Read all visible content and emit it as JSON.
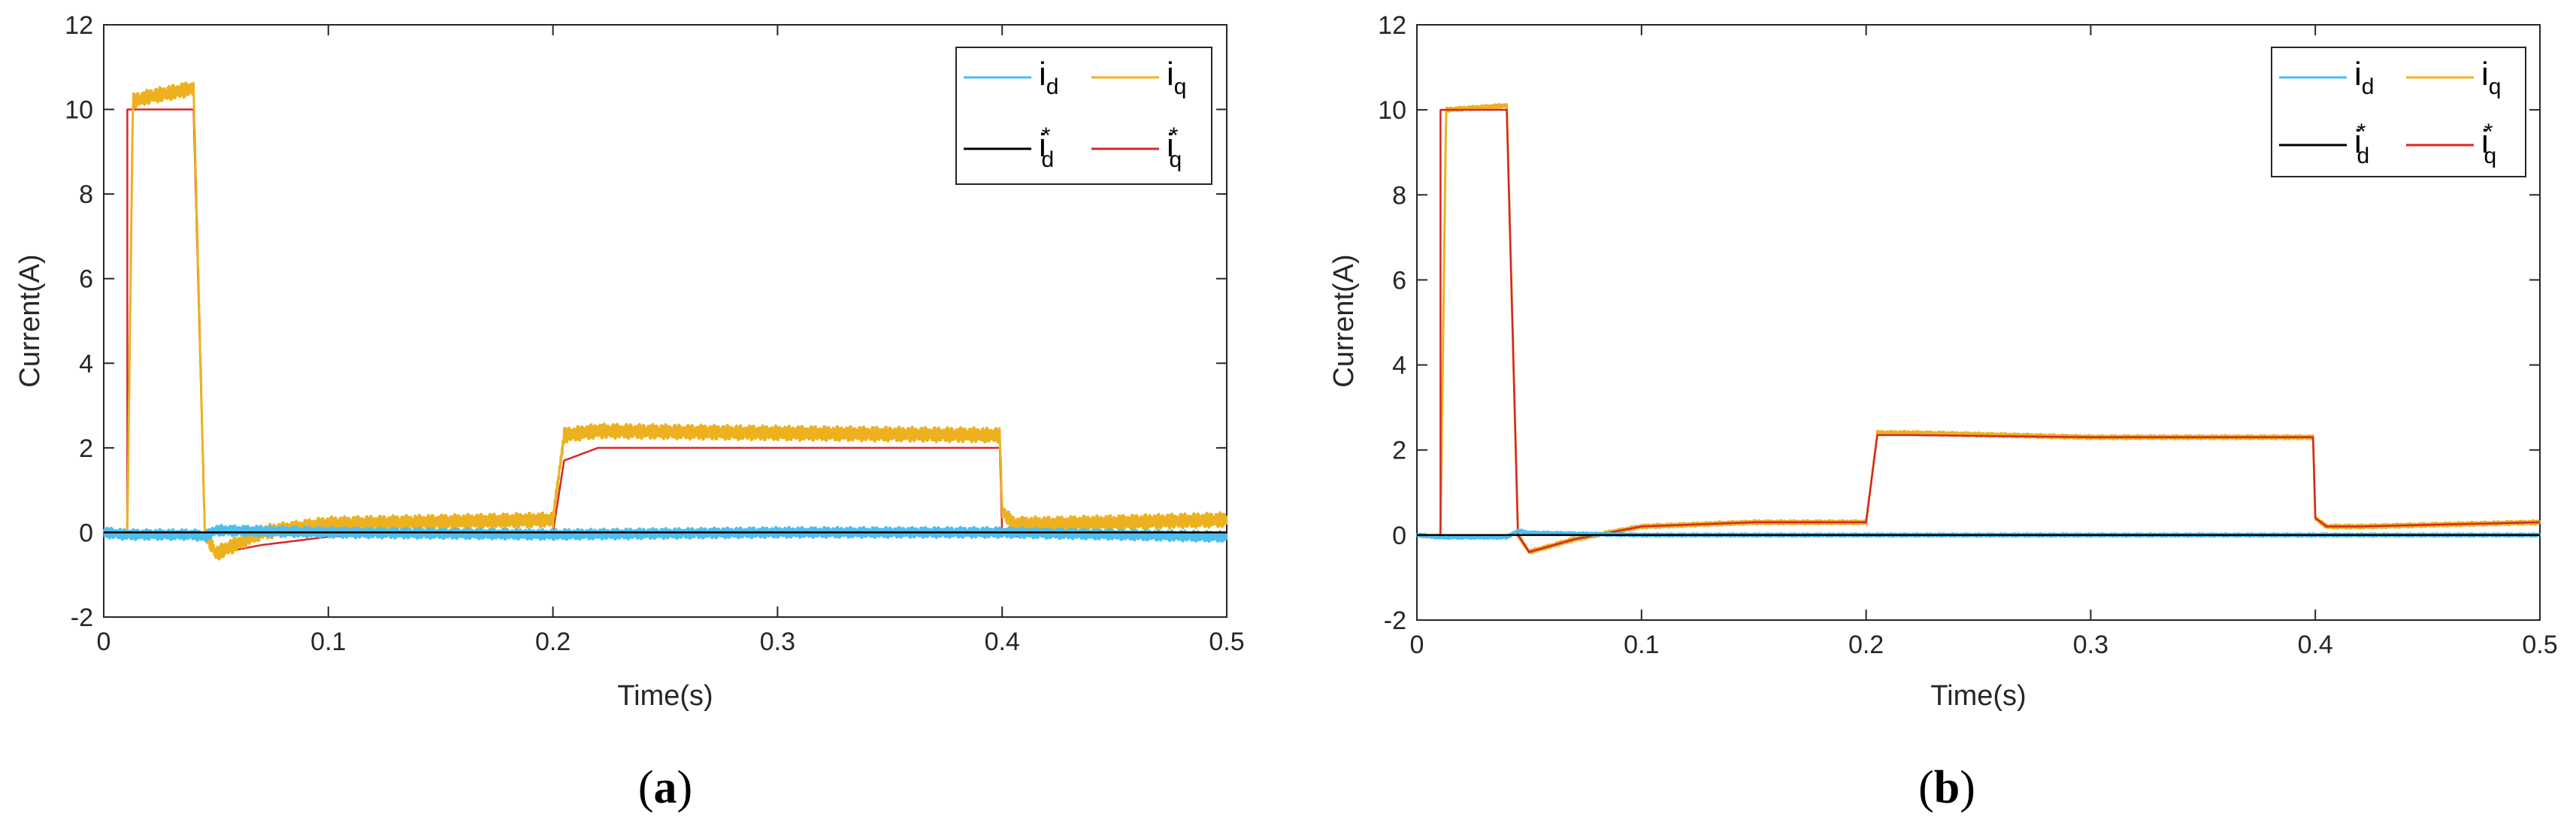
{
  "panels": [
    {
      "label_open": "(",
      "label_letter": "a",
      "label_close": ")"
    },
    {
      "label_open": "(",
      "label_letter": "b",
      "label_close": ")"
    }
  ],
  "colors": {
    "id": "#4DBEEE",
    "iq": "#EDB120",
    "id_ref": "#000000",
    "iq_ref": "#D62728",
    "axis": "#262626"
  },
  "chart_data": [
    {
      "type": "line",
      "panel": "a",
      "title": "",
      "xlabel": "Time(s)",
      "ylabel": "Current(A)",
      "xlim": [
        0,
        0.5
      ],
      "ylim": [
        -2,
        12
      ],
      "xticks": [
        "0",
        "0.1",
        "0.2",
        "0.3",
        "0.4",
        "0.5"
      ],
      "yticks": [
        "-2",
        "0",
        "2",
        "4",
        "6",
        "8",
        "10",
        "12"
      ],
      "legend": {
        "placement": "top-right",
        "entries": [
          {
            "key": "id",
            "base": "i",
            "sub": "d",
            "sup": ""
          },
          {
            "key": "iq",
            "base": "i",
            "sub": "q",
            "sup": ""
          },
          {
            "key": "id_ref",
            "base": "i",
            "sub": "d",
            "sup": "*"
          },
          {
            "key": "iq_ref",
            "base": "i",
            "sub": "q",
            "sup": "*"
          }
        ]
      },
      "series": [
        {
          "key": "iq_ref",
          "name": "iq*",
          "x": [
            0,
            0.0105,
            0.0105,
            0.04,
            0.045,
            0.05,
            0.07,
            0.1,
            0.15,
            0.199,
            0.2,
            0.205,
            0.22,
            0.3,
            0.399,
            0.4,
            0.405,
            0.42,
            0.5
          ],
          "values": [
            0,
            0,
            10,
            10,
            0,
            -0.5,
            -0.3,
            -0.1,
            0,
            0,
            0,
            1.7,
            2,
            2,
            2,
            0,
            -0.1,
            -0.05,
            0
          ]
        },
        {
          "key": "iq",
          "name": "iq",
          "x": [
            0,
            0.0105,
            0.013,
            0.02,
            0.04,
            0.045,
            0.05,
            0.07,
            0.1,
            0.15,
            0.199,
            0.2,
            0.205,
            0.22,
            0.3,
            0.399,
            0.4,
            0.405,
            0.42,
            0.5
          ],
          "values": [
            0,
            0,
            10.2,
            10.3,
            10.5,
            0,
            -0.5,
            0,
            0.2,
            0.25,
            0.3,
            0.3,
            2.3,
            2.4,
            2.35,
            2.3,
            0.5,
            0.2,
            0.2,
            0.3
          ],
          "ripple": 0.18
        },
        {
          "key": "id",
          "name": "id",
          "x": [
            0,
            0.01,
            0.04,
            0.045,
            0.05,
            0.1,
            0.2,
            0.3,
            0.4,
            0.45,
            0.5
          ],
          "values": [
            0,
            -0.05,
            -0.05,
            -0.1,
            0.05,
            0,
            -0.05,
            0,
            0,
            -0.05,
            -0.1
          ],
          "ripple": 0.13
        },
        {
          "key": "id_ref",
          "name": "id*",
          "x": [
            0,
            0.5
          ],
          "values": [
            0,
            0
          ]
        }
      ]
    },
    {
      "type": "line",
      "panel": "b",
      "title": "",
      "xlabel": "Time(s)",
      "ylabel": "Current(A)",
      "xlim": [
        0,
        0.5
      ],
      "ylim": [
        -2,
        12
      ],
      "xticks": [
        "0",
        "0.1",
        "0.2",
        "0.3",
        "0.4",
        "0.5"
      ],
      "yticks": [
        "-2",
        "0",
        "2",
        "4",
        "6",
        "8",
        "10",
        "12"
      ],
      "legend": {
        "placement": "top-right",
        "entries": [
          {
            "key": "id",
            "base": "i",
            "sub": "d",
            "sup": ""
          },
          {
            "key": "iq",
            "base": "i",
            "sub": "q",
            "sup": ""
          },
          {
            "key": "id_ref",
            "base": "i",
            "sub": "d",
            "sup": "*"
          },
          {
            "key": "iq_ref",
            "base": "i",
            "sub": "q",
            "sup": "*"
          }
        ]
      },
      "series": [
        {
          "key": "iq",
          "name": "iq",
          "x": [
            0,
            0.0105,
            0.013,
            0.04,
            0.045,
            0.05,
            0.07,
            0.1,
            0.15,
            0.199,
            0.2,
            0.205,
            0.22,
            0.3,
            0.399,
            0.4,
            0.405,
            0.42,
            0.5
          ],
          "values": [
            0,
            0,
            10,
            10.1,
            0,
            -0.4,
            -0.1,
            0.2,
            0.3,
            0.3,
            0.3,
            2.4,
            2.4,
            2.3,
            2.3,
            0.4,
            0.2,
            0.2,
            0.3
          ],
          "ripple": 0.05
        },
        {
          "key": "iq_ref",
          "name": "iq*",
          "x": [
            0,
            0.0105,
            0.0105,
            0.04,
            0.045,
            0.05,
            0.07,
            0.1,
            0.15,
            0.199,
            0.2,
            0.205,
            0.22,
            0.3,
            0.399,
            0.4,
            0.405,
            0.42,
            0.5
          ],
          "values": [
            0,
            0,
            10,
            10,
            0,
            -0.4,
            -0.1,
            0.2,
            0.3,
            0.3,
            0.3,
            2.35,
            2.35,
            2.3,
            2.3,
            0.4,
            0.2,
            0.2,
            0.3
          ]
        },
        {
          "key": "id",
          "name": "id",
          "x": [
            0,
            0.01,
            0.04,
            0.045,
            0.05,
            0.1,
            0.2,
            0.3,
            0.4,
            0.5
          ],
          "values": [
            0,
            -0.05,
            -0.05,
            0.1,
            0.05,
            0,
            0,
            0,
            0,
            0
          ],
          "ripple": 0.04
        },
        {
          "key": "id_ref",
          "name": "id*",
          "x": [
            0,
            0.5
          ],
          "values": [
            0,
            0
          ]
        }
      ]
    }
  ]
}
